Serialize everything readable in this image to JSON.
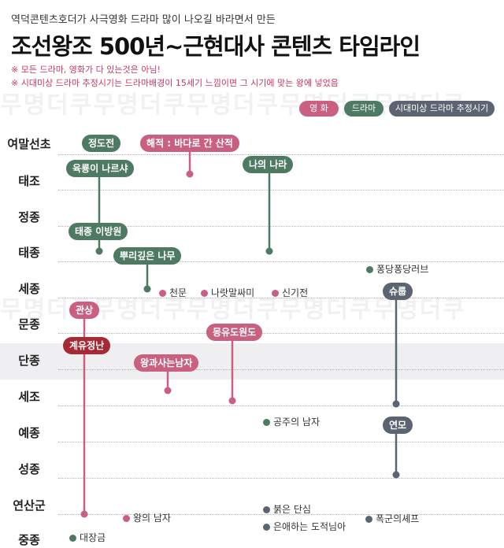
{
  "header": {
    "subtitle": "역덕콘텐츠호더가 사극영화 드라마 많이 나오길 바라면서 만든",
    "title": "조선왕조 500년~근현대사 콘텐츠 타임라인",
    "note1": "※ 모든 드라마, 영화가 다 있는것은 아님!",
    "note2": "※ 시대미상 드라마 추정시기는 드라마배경이 15세기 느낌이면 그 시기에 맞는 왕에 넣었음"
  },
  "legend": {
    "movie": "영 화",
    "drama": "드라마",
    "period": "시대미상 드라마 추정시기"
  },
  "watermark": "무명더쿠무명더쿠무명더쿠무명더쿠무명더쿠",
  "kings": [
    "여말선초",
    "태조",
    "정종",
    "태종",
    "세종",
    "문종",
    "단종",
    "세조",
    "예종",
    "성종",
    "연산군",
    "중종"
  ],
  "items": {
    "jeongdojeon": "정도전",
    "haejeok": "해적 : 바다로 간 산적",
    "yukryong": "육룡이 나르샤",
    "naui_nara": "나의 나라",
    "taejong_ibangwon": "태종 이방원",
    "ppuri": "뿌리깊은 나무",
    "pungdang": "퐁당퐁당러브",
    "cheonmun": "천문",
    "naratmal": "나랏말싸미",
    "singijeon": "신기전",
    "syuryu": "슈룹",
    "gwansang": "관상",
    "gyeyu": "계유정난",
    "mongyu": "몽유도원도",
    "wanggwa": "왕과사는남자",
    "gongju": "공주의 남자",
    "yeonmo": "연모",
    "bulgeun": "붉은 단심",
    "wangui_namja": "왕의 남자",
    "eunae": "은애하는 도적님아",
    "pokgun": "폭군의셰프",
    "daejanggeum": "대장금"
  }
}
